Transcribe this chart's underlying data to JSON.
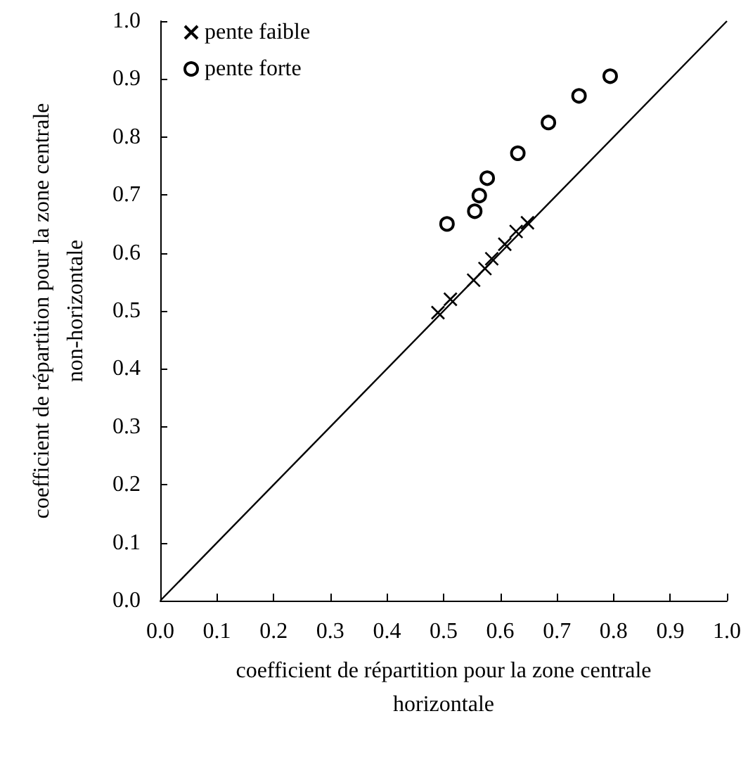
{
  "chart_data": {
    "type": "scatter",
    "xlabel": "coefficient de répartition pour la zone centrale horizontale",
    "ylabel": "coefficient de répartition pour la zone centrale non-horizontale",
    "xlim": [
      0,
      1
    ],
    "ylim": [
      0,
      1
    ],
    "xticks": [
      {
        "value": 0,
        "label": "0.0"
      },
      {
        "value": 0.1,
        "label": "0.1"
      },
      {
        "value": 0.2,
        "label": "0.2"
      },
      {
        "value": 0.3,
        "label": "0.3"
      },
      {
        "value": 0.4,
        "label": "0.4"
      },
      {
        "value": 0.5,
        "label": "0.5"
      },
      {
        "value": 0.6,
        "label": "0.6"
      },
      {
        "value": 0.7,
        "label": "0.7"
      },
      {
        "value": 0.8,
        "label": "0.8"
      },
      {
        "value": 0.9,
        "label": "0.9"
      },
      {
        "value": 1,
        "label": "1.0"
      }
    ],
    "yticks": [
      {
        "value": 0,
        "label": "0.0"
      },
      {
        "value": 0.1,
        "label": "0.1"
      },
      {
        "value": 0.2,
        "label": "0.2"
      },
      {
        "value": 0.3,
        "label": "0.3"
      },
      {
        "value": 0.4,
        "label": "0.4"
      },
      {
        "value": 0.5,
        "label": "0.5"
      },
      {
        "value": 0.6,
        "label": "0.6"
      },
      {
        "value": 0.7,
        "label": "0.7"
      },
      {
        "value": 0.8,
        "label": "0.8"
      },
      {
        "value": 0.9,
        "label": "0.9"
      },
      {
        "value": 1,
        "label": "1.0"
      }
    ],
    "grid": false,
    "legend": "top left",
    "series": [
      {
        "name": "pente faible",
        "color": "#000000",
        "marker": "cross",
        "x": [
          0.49,
          0.512,
          0.553,
          0.573,
          0.585,
          0.608,
          0.628,
          0.648
        ],
        "values": [
          0.497,
          0.52,
          0.553,
          0.573,
          0.59,
          0.615,
          0.637,
          0.652
        ]
      },
      {
        "name": "pente forte",
        "color": "#000000",
        "marker": "circle",
        "x": [
          0.506,
          0.555,
          0.563,
          0.577,
          0.631,
          0.685,
          0.739,
          0.794
        ],
        "values": [
          0.65,
          0.672,
          0.699,
          0.729,
          0.772,
          0.825,
          0.871,
          0.905
        ]
      },
      {
        "type": "line",
        "color": "#000000",
        "marker": "none",
        "x": [
          0,
          1
        ],
        "values": [
          0,
          1
        ]
      }
    ]
  }
}
